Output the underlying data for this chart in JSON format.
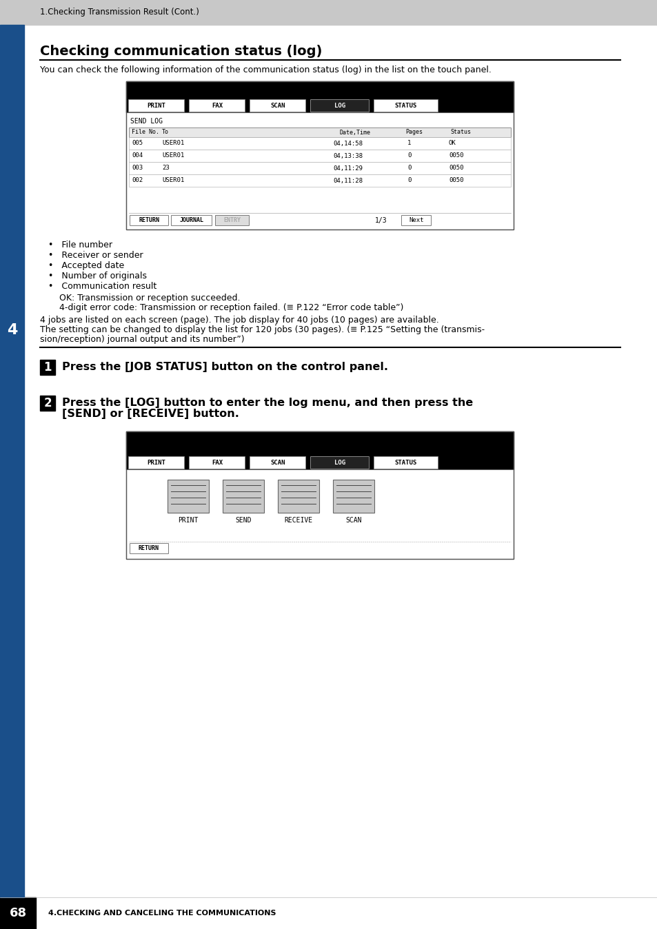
{
  "page_bg": "#ffffff",
  "header_bg": "#c8c8c8",
  "header_text": "1.Checking Transmission Result (Cont.)",
  "footer_page_num": "68",
  "footer_text": "4.CHECKING AND CANCELING THE COMMUNICATIONS",
  "sidebar_color": "#1a4f8a",
  "sidebar_number": "4",
  "title": "Checking communication status (log)",
  "intro_text": "You can check the following information of the communication status (log) in the list on the touch panel.",
  "bullet_points": [
    "File number",
    "Receiver or sender",
    "Accepted date",
    "Number of originals",
    "Communication result"
  ],
  "ok_line": "OK: Transmission or reception succeeded.",
  "error_line": "4-digit error code: Transmission or reception failed. (≡ P.122 “Error code table”)",
  "body_text1": "4 jobs are listed on each screen (page). The job display for 40 jobs (10 pages) are available.",
  "body_text2": "The setting can be changed to display the list for 120 jobs (30 pages). (≡ P.125 “Setting the (transmis-",
  "body_text3": "sion/reception) journal output and its number”)",
  "step1_text": "Press the [JOB STATUS] button on the control panel.",
  "step2_line1": "Press the [LOG] button to enter the log menu, and then press the",
  "step2_line2": "[SEND] or [RECEIVE] button.",
  "nav_buttons": [
    "PRINT",
    "FAX",
    "SCAN",
    "LOG",
    "STATUS"
  ],
  "active_nav": "LOG",
  "screen1_label": "SEND LOG",
  "table_headers": [
    "File No.",
    "To",
    "Date,Time",
    "Pages",
    "Status"
  ],
  "table_rows": [
    [
      "005",
      "USER01",
      "04,14:58",
      "1",
      "OK"
    ],
    [
      "004",
      "USER01",
      "04,13:38",
      "0",
      "0050"
    ],
    [
      "003",
      "23",
      "04,11:29",
      "0",
      "0050"
    ],
    [
      "002",
      "USER01",
      "04,11:28",
      "0",
      "0050"
    ]
  ],
  "bottom_btns1": [
    "RETURN",
    "JOURNAL",
    "ENTRY"
  ],
  "page_indicator": "1/3",
  "icon_labels": [
    "PRINT",
    "SEND",
    "RECEIVE",
    "SCAN"
  ],
  "bottom_btns2": [
    "RETURN"
  ]
}
